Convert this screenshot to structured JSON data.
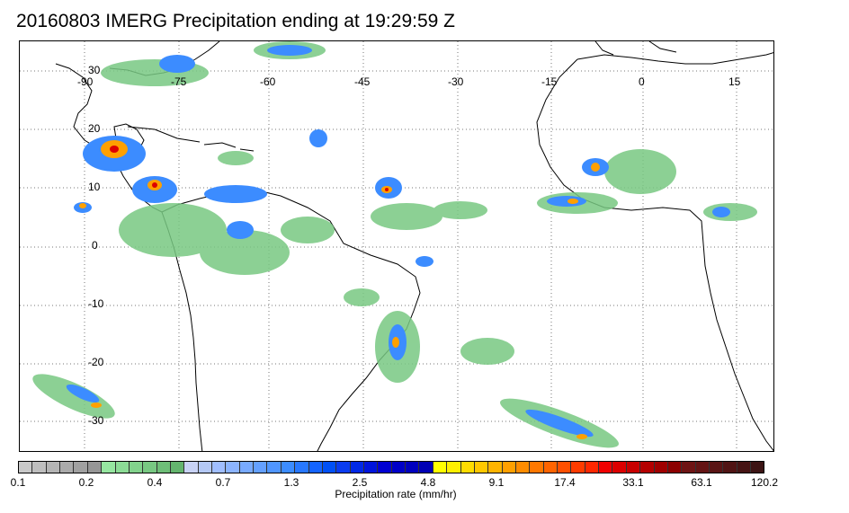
{
  "title": "20160803 IMERG Precipitation ending at 19:29:59 Z",
  "map": {
    "lon_labels": [
      "-90",
      "-75",
      "-60",
      "-45",
      "-30",
      "-15",
      "0",
      "15"
    ],
    "lat_labels": [
      "30",
      "20",
      "10",
      "0",
      "-10",
      "-20",
      "-30"
    ],
    "lon_values": [
      -90,
      -75,
      -60,
      -45,
      -30,
      -15,
      0,
      15
    ],
    "lat_values": [
      30,
      20,
      10,
      0,
      -10,
      -20,
      -30
    ],
    "lon_range": [
      -100,
      20
    ],
    "lat_range": [
      -35,
      35
    ],
    "grid": "dotted",
    "coastline_color": "#000000"
  },
  "colorbar": {
    "tick_labels": [
      "0.1",
      "0.2",
      "0.4",
      "0.7",
      "1.3",
      "2.5",
      "4.8",
      "9.1",
      "17.4",
      "33.1",
      "63.1",
      "120.2"
    ],
    "label": "Precipitation rate (mm/hr)",
    "colors": [
      "#c8c8c8",
      "#bebebe",
      "#b4b4b4",
      "#aaaaaa",
      "#a0a0a0",
      "#969696",
      "#96e6a0",
      "#8cdc96",
      "#82d28c",
      "#78c882",
      "#6ebe78",
      "#64b46e",
      "#c8d2f5",
      "#b4c8f5",
      "#a0beff",
      "#8cb4ff",
      "#78aaff",
      "#64a0ff",
      "#5096ff",
      "#3c8cff",
      "#2878ff",
      "#1464ff",
      "#0050f5",
      "#0a3cf0",
      "#0028e6",
      "#0014dc",
      "#0000d2",
      "#0000c8",
      "#0000be",
      "#0000b4",
      "#ffff00",
      "#fff000",
      "#ffdc00",
      "#ffc800",
      "#ffb400",
      "#ffa000",
      "#ff8c00",
      "#ff7800",
      "#ff6400",
      "#ff5000",
      "#ff3c00",
      "#ff2800",
      "#f00000",
      "#dc0000",
      "#c80000",
      "#b40000",
      "#a00000",
      "#8c0000",
      "#6e1414",
      "#641414",
      "#5a1414",
      "#501414",
      "#461414",
      "#3c1414"
    ]
  }
}
